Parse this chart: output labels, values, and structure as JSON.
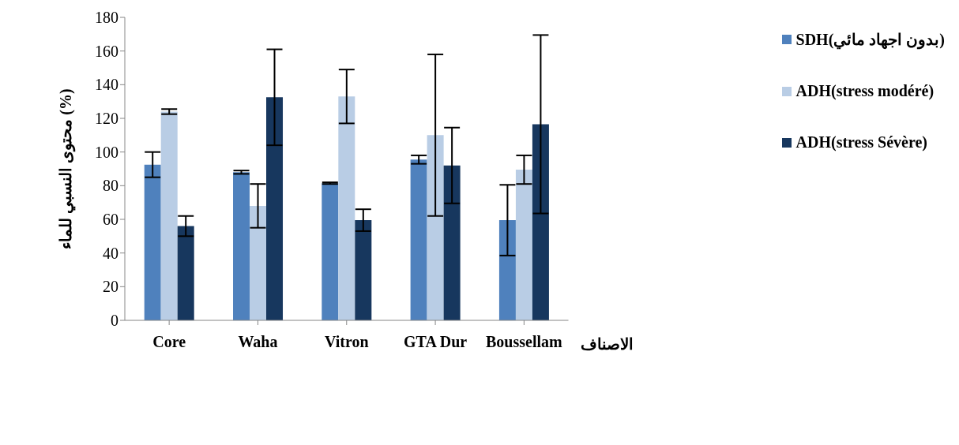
{
  "chart_data": {
    "type": "bar",
    "xlabel": "الاصناف",
    "ylabel": "محتوى النسبي للماء (%)",
    "categories": [
      "Core",
      "Waha",
      "Vitron",
      "GTA Dur",
      "Boussellam"
    ],
    "series": [
      {
        "name": "SDH(بدون اجهاد مائي)",
        "color": "#4f81bd",
        "values": [
          92.5,
          88,
          81.5,
          95.5,
          59.5
        ],
        "errors": [
          7.5,
          1,
          0.5,
          2.5,
          21
        ]
      },
      {
        "name": "ADH(stress modéré)",
        "color": "#b9cde5",
        "values": [
          124,
          68,
          133,
          110,
          89.5
        ],
        "errors": [
          1.5,
          13,
          16,
          48,
          8.5
        ]
      },
      {
        "name": "ADH(stress Sévère)",
        "color": "#17375e",
        "values": [
          56,
          132.5,
          59.5,
          92,
          116.5
        ],
        "errors": [
          6,
          28.5,
          6.5,
          22.5,
          53
        ]
      }
    ],
    "ylim": [
      0,
      180
    ],
    "yticks": [
      0,
      20,
      40,
      60,
      80,
      100,
      120,
      140,
      160,
      180
    ],
    "grid": false,
    "legend": "right"
  }
}
